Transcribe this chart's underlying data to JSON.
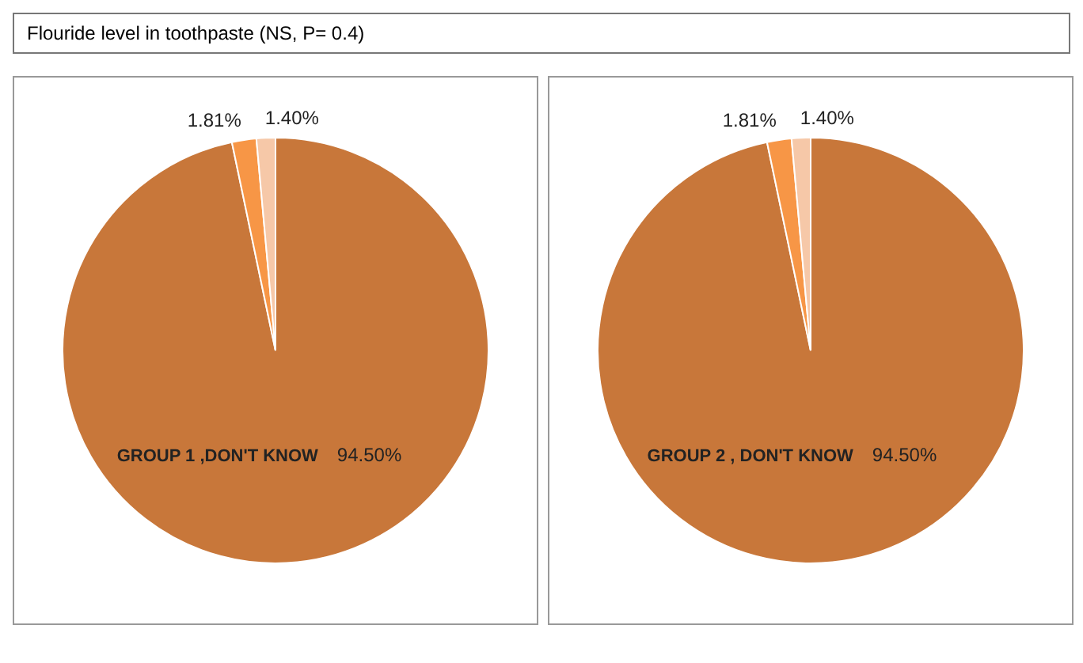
{
  "chart_data": [
    {
      "type": "pie",
      "title": "Flouride level in toothpaste (NS, P= 0.4)",
      "categories": [
        "GROUP 1 ,DON'T KNOW",
        null,
        null
      ],
      "values": [
        94.5,
        1.81,
        1.4
      ],
      "value_labels": [
        "94.50%",
        "1.81%",
        "1.40%"
      ],
      "colors": [
        "#c8773a",
        "#f79646",
        "#f6c8a8"
      ]
    },
    {
      "type": "pie",
      "categories": [
        "GROUP 2 , DON'T KNOW",
        null,
        null
      ],
      "values": [
        94.5,
        1.81,
        1.4
      ],
      "value_labels": [
        "94.50%",
        "1.81%",
        "1.40%"
      ],
      "colors": [
        "#c8773a",
        "#f79646",
        "#f6c8a8"
      ]
    }
  ]
}
